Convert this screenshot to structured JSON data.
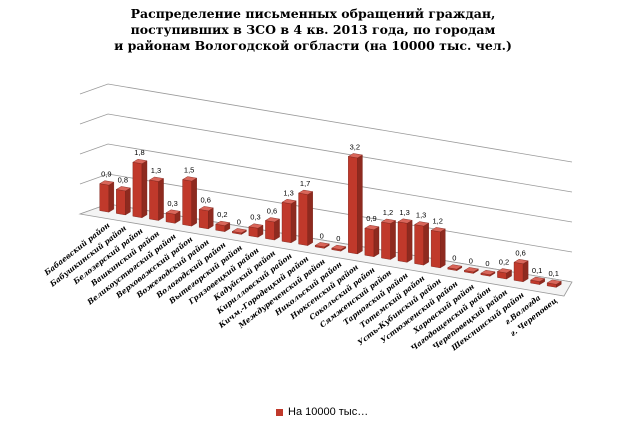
{
  "chart_data": {
    "type": "bar",
    "title_lines": [
      "Распределение письменных обращений граждан,",
      "поступивших в ЗСО  в 4 кв. 2013 года, по городам",
      "и районам Вологодской огбласти (на 10000 тыс. чел.)"
    ],
    "categories": [
      "Бабаевский район",
      "Бабушкинский район",
      "Белозерский район",
      "Вашкинский район",
      "Великоустюгский район",
      "Верховажский район",
      "Вожегодский район",
      "Вологодский район",
      "Вытегорский район",
      "Грязовецкий район",
      "Кадуйский район",
      "Кирилловский район",
      "Кичм.-Городецкий район",
      "Междуреченский район",
      "Никольский район",
      "Нюксенский район",
      "Сокольский район",
      "Сямженский район",
      "Тарногский район",
      "Тотемский район",
      "Усть-Кубинский район",
      "Устюженский район",
      "Харовский район",
      "Чагодощенский район",
      "Череповецкий район",
      "Шекснинский район",
      "г.Вологда",
      "г. Череповец"
    ],
    "series": [
      {
        "name": "На 10000  тыс…",
        "values": [
          0.9,
          0.8,
          1.8,
          1.3,
          0.3,
          1.5,
          0.6,
          0.2,
          0,
          0.3,
          0.6,
          1.3,
          1.7,
          0,
          0,
          3.2,
          0.9,
          1.2,
          1.3,
          1.3,
          1.2,
          0,
          0,
          0,
          0.2,
          0.6,
          0.1,
          0.1
        ],
        "labels": [
          "0,9",
          "0,8",
          "1,8",
          "1,3",
          "0,3",
          "1,5",
          "0,6",
          "0,2",
          "0",
          "0,3",
          "0,6",
          "1,3",
          "1,7",
          "0",
          "0",
          "3,2",
          "0,9",
          "1,2",
          "1,3",
          "1,3",
          "1,2",
          "0",
          "0",
          "0",
          "0,2",
          "0,6",
          "0,1",
          "0,1"
        ],
        "color": "#c0392b"
      }
    ],
    "ylim": [
      0,
      4
    ],
    "grid": true,
    "legend_position": "bottom",
    "perspective_3d": true
  }
}
